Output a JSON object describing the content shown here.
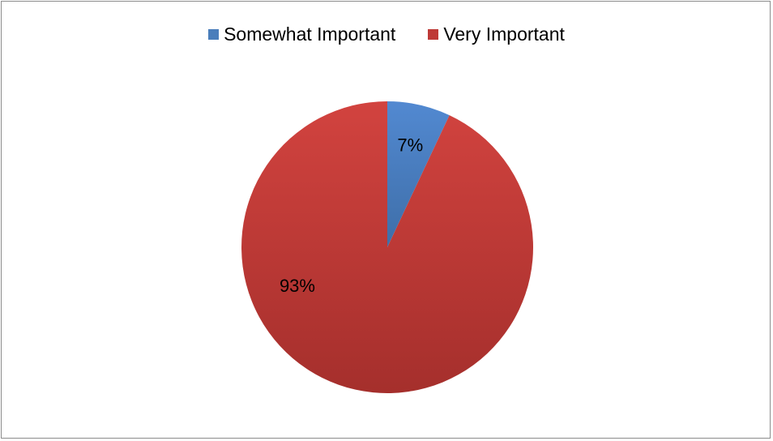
{
  "chart_data": {
    "type": "pie",
    "categories": [
      "Somewhat Important",
      "Very Important"
    ],
    "values": [
      7,
      93
    ],
    "data_labels": [
      "7%",
      "93%"
    ],
    "colors": [
      "#4a7ebb",
      "#be3a37"
    ],
    "legend_position": "top",
    "title": ""
  }
}
